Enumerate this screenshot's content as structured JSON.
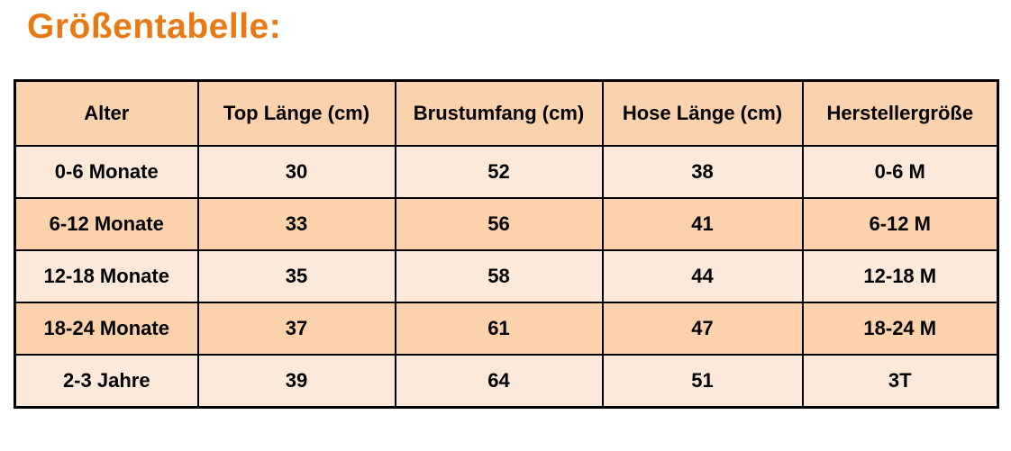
{
  "page": {
    "title": "Größentabelle:",
    "title_color": "#e87a15",
    "background_color": "#ffffff"
  },
  "table": {
    "colors": {
      "header_bg": "#fad2ad",
      "row_light_bg": "#fce9da",
      "row_dark_bg": "#fbd2ab",
      "border": "#000000",
      "text": "#000000"
    },
    "columns": [
      "Alter",
      "Top Länge (cm)",
      "Brustumfang (cm)",
      "Hose Länge (cm)",
      "Herstellergröße"
    ],
    "rows": [
      [
        "0-6 Monate",
        "30",
        "52",
        "38",
        "0-6 M"
      ],
      [
        "6-12 Monate",
        "33",
        "56",
        "41",
        "6-12 M"
      ],
      [
        "12-18 Monate",
        "35",
        "58",
        "44",
        "12-18 M"
      ],
      [
        "18-24 Monate",
        "37",
        "61",
        "47",
        "18-24 M"
      ],
      [
        "2-3 Jahre",
        "39",
        "64",
        "51",
        "3T"
      ]
    ]
  }
}
